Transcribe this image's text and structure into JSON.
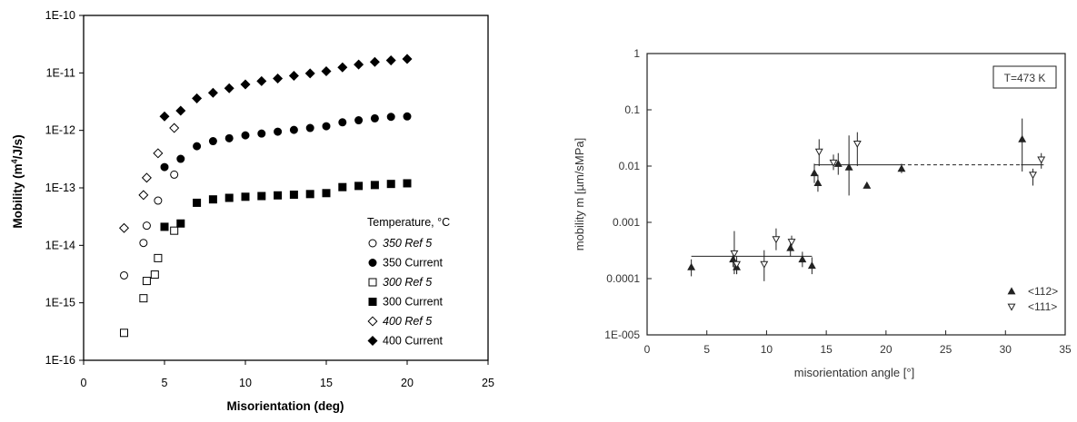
{
  "chart_data": [
    {
      "type": "scatter",
      "xlabel": "Misorientation (deg)",
      "ylabel": "Mobility (m⁴/J/s)",
      "ylabel_text": "Mobility (m",
      "ylabel_sup": "4",
      "ylabel_tail": "/J/s)",
      "xlim": [
        0,
        25
      ],
      "ylim": [
        1e-16,
        1e-10
      ],
      "yscale": "log",
      "grid": false,
      "legend_position": "bottom-right",
      "x_ticks": [
        0,
        5,
        10,
        15,
        20,
        25
      ],
      "x_tick_labels": [
        "0",
        "5",
        "10",
        "15",
        "20",
        "25"
      ],
      "y_ticks": [
        1e-16,
        1e-15,
        1e-14,
        1e-13,
        1e-12,
        1e-11,
        1e-10
      ],
      "y_tick_labels": [
        "1E-16",
        "1E-15",
        "1E-14",
        "1E-13",
        "1E-12",
        "1E-11",
        "1E-10"
      ],
      "legend_title": "Temperature, °C",
      "series": [
        {
          "name": "350 Ref 5",
          "marker": "circle",
          "filled": false,
          "italic": true,
          "points": [
            [
              2.5,
              3e-15
            ],
            [
              3.7,
              1.1e-14
            ],
            [
              3.9,
              2.2e-14
            ],
            [
              4.6,
              6e-14
            ],
            [
              5.6,
              1.7e-13
            ]
          ]
        },
        {
          "name": "350 Current",
          "marker": "circle",
          "filled": true,
          "italic": false,
          "points": [
            [
              5,
              2.3e-13
            ],
            [
              6,
              3.2e-13
            ],
            [
              7,
              5.3e-13
            ],
            [
              8,
              6.5e-13
            ],
            [
              9,
              7.3e-13
            ],
            [
              10,
              8.2e-13
            ],
            [
              11,
              8.8e-13
            ],
            [
              12,
              9.5e-13
            ],
            [
              13,
              1.02e-12
            ],
            [
              14,
              1.1e-12
            ],
            [
              15,
              1.18e-12
            ],
            [
              16,
              1.38e-12
            ],
            [
              17,
              1.5e-12
            ],
            [
              18,
              1.62e-12
            ],
            [
              19,
              1.72e-12
            ],
            [
              20,
              1.75e-12
            ]
          ]
        },
        {
          "name": "300 Ref 5",
          "marker": "square",
          "filled": false,
          "italic": true,
          "points": [
            [
              2.5,
              3e-16
            ],
            [
              3.7,
              1.2e-15
            ],
            [
              3.9,
              2.4e-15
            ],
            [
              4.4,
              3.1e-15
            ],
            [
              4.6,
              6e-15
            ],
            [
              5.6,
              1.8e-14
            ]
          ]
        },
        {
          "name": "300 Current",
          "marker": "square",
          "filled": true,
          "italic": false,
          "points": [
            [
              5,
              2.1e-14
            ],
            [
              6,
              2.4e-14
            ],
            [
              7,
              5.5e-14
            ],
            [
              8,
              6.3e-14
            ],
            [
              9,
              6.7e-14
            ],
            [
              10,
              7e-14
            ],
            [
              11,
              7.2e-14
            ],
            [
              12,
              7.4e-14
            ],
            [
              13,
              7.6e-14
            ],
            [
              14,
              7.8e-14
            ],
            [
              15,
              8.1e-14
            ],
            [
              16,
              1.03e-13
            ],
            [
              17,
              1.08e-13
            ],
            [
              18,
              1.12e-13
            ],
            [
              19,
              1.17e-13
            ],
            [
              20,
              1.2e-13
            ]
          ]
        },
        {
          "name": "400 Ref 5",
          "marker": "diamond",
          "filled": false,
          "italic": true,
          "points": [
            [
              2.5,
              2e-14
            ],
            [
              3.7,
              7.5e-14
            ],
            [
              3.9,
              1.5e-13
            ],
            [
              4.6,
              4e-13
            ],
            [
              5.6,
              1.1e-12
            ]
          ]
        },
        {
          "name": "400 Current",
          "marker": "diamond",
          "filled": true,
          "italic": false,
          "points": [
            [
              5,
              1.75e-12
            ],
            [
              6,
              2.2e-12
            ],
            [
              7,
              3.6e-12
            ],
            [
              8,
              4.5e-12
            ],
            [
              9,
              5.4e-12
            ],
            [
              10,
              6.3e-12
            ],
            [
              11,
              7.2e-12
            ],
            [
              12,
              8e-12
            ],
            [
              13,
              8.9e-12
            ],
            [
              14,
              9.8e-12
            ],
            [
              15,
              1.07e-11
            ],
            [
              16,
              1.25e-11
            ],
            [
              17,
              1.4e-11
            ],
            [
              18,
              1.55e-11
            ],
            [
              19,
              1.65e-11
            ],
            [
              20,
              1.75e-11
            ]
          ]
        }
      ]
    },
    {
      "type": "scatter",
      "xlabel": "misorientation angle [°]",
      "ylabel": "mobility m [µm/sMPa]",
      "xlim": [
        0,
        35
      ],
      "ylim": [
        1e-05,
        1
      ],
      "yscale": "log",
      "grid": false,
      "legend_position": "bottom-right",
      "annotation": "T=473 K",
      "x_ticks": [
        0,
        5,
        10,
        15,
        20,
        25,
        30,
        35
      ],
      "x_tick_labels": [
        "0",
        "5",
        "10",
        "15",
        "20",
        "25",
        "30",
        "35"
      ],
      "y_ticks": [
        1e-05,
        0.0001,
        0.001,
        0.01,
        0.1,
        1
      ],
      "y_tick_labels": [
        "1E-005",
        "0.0001",
        "0.001",
        "0.01",
        "0.1",
        "1"
      ],
      "series": [
        {
          "name": "<112>",
          "marker": "triangle-up",
          "filled": true,
          "points": [
            {
              "x": 3.7,
              "y": 0.00016,
              "lo": 0.00011,
              "hi": 0.00022
            },
            {
              "x": 7.2,
              "y": 0.00022,
              "lo": 0.00016,
              "hi": 0.0003
            },
            {
              "x": 7.5,
              "y": 0.00016,
              "lo": 0.00012,
              "hi": 0.00021
            },
            {
              "x": 12.0,
              "y": 0.00035,
              "lo": 0.00025,
              "hi": 0.00048
            },
            {
              "x": 13.0,
              "y": 0.00022,
              "lo": 0.00016,
              "hi": 0.0003
            },
            {
              "x": 13.8,
              "y": 0.00017,
              "lo": 0.00012,
              "hi": 0.00024
            },
            {
              "x": 14.0,
              "y": 0.0075,
              "lo": 0.005,
              "hi": 0.011
            },
            {
              "x": 14.3,
              "y": 0.005,
              "lo": 0.0035,
              "hi": 0.007
            },
            {
              "x": 16.0,
              "y": 0.011,
              "lo": 0.007,
              "hi": 0.017
            },
            {
              "x": 16.9,
              "y": 0.0095,
              "lo": 0.003,
              "hi": 0.035
            },
            {
              "x": 18.4,
              "y": 0.0045,
              "lo": 0.0045,
              "hi": 0.0045
            },
            {
              "x": 21.3,
              "y": 0.009,
              "lo": 0.0075,
              "hi": 0.011
            },
            {
              "x": 31.4,
              "y": 0.03,
              "lo": 0.008,
              "hi": 0.07
            }
          ]
        },
        {
          "name": "<111>",
          "marker": "triangle-down",
          "filled": false,
          "points": [
            {
              "x": 7.3,
              "y": 0.00028,
              "lo": 0.00012,
              "hi": 0.0007
            },
            {
              "x": 7.5,
              "y": 0.00018,
              "lo": 0.00012,
              "hi": 0.00025
            },
            {
              "x": 9.8,
              "y": 0.00018,
              "lo": 9e-05,
              "hi": 0.00032
            },
            {
              "x": 10.8,
              "y": 0.0005,
              "lo": 0.00032,
              "hi": 0.00078
            },
            {
              "x": 12.1,
              "y": 0.00045,
              "lo": 0.00032,
              "hi": 0.00058
            },
            {
              "x": 14.4,
              "y": 0.018,
              "lo": 0.01,
              "hi": 0.03
            },
            {
              "x": 15.6,
              "y": 0.0115,
              "lo": 0.0085,
              "hi": 0.016
            },
            {
              "x": 17.6,
              "y": 0.025,
              "lo": 0.01,
              "hi": 0.04
            },
            {
              "x": 32.3,
              "y": 0.007,
              "lo": 0.0045,
              "hi": 0.009
            },
            {
              "x": 33.0,
              "y": 0.013,
              "lo": 0.009,
              "hi": 0.017
            }
          ]
        }
      ],
      "fit_lines": [
        {
          "x": [
            3.7,
            13.8
          ],
          "y": 0.00025,
          "style": "solid"
        },
        {
          "x": [
            14.0,
            21.3
          ],
          "y": 0.0105,
          "style": "solid"
        },
        {
          "x": [
            21.3,
            31.3
          ],
          "y": 0.0105,
          "style": "dashed"
        },
        {
          "x": [
            31.3,
            33.2
          ],
          "y": 0.0105,
          "style": "solid"
        }
      ]
    }
  ]
}
